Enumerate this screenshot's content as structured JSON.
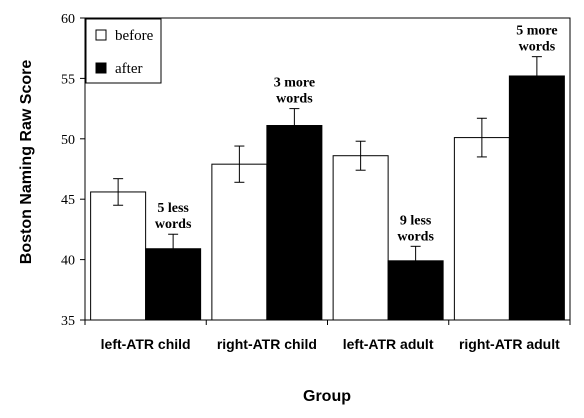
{
  "chart_data": {
    "type": "bar",
    "xlabel": "Group",
    "ylabel": "Boston Naming Raw Score",
    "ylim": [
      35,
      60
    ],
    "yticks": [
      35,
      40,
      45,
      50,
      55,
      60
    ],
    "categories": [
      "left-ATR child",
      "right-ATR child",
      "left-ATR adult",
      "right-ATR adult"
    ],
    "series": [
      {
        "name": "before",
        "color": "#ffffff",
        "values": [
          45.6,
          47.9,
          48.6,
          50.1
        ],
        "errors": [
          1.1,
          1.5,
          1.2,
          1.6
        ]
      },
      {
        "name": "after",
        "color": "#000000",
        "values": [
          40.9,
          51.1,
          39.9,
          55.2
        ],
        "errors": [
          1.2,
          1.4,
          1.2,
          1.6
        ]
      }
    ],
    "annotations": [
      {
        "category": "left-ATR child",
        "series": "after",
        "lines": [
          "5 less",
          "words"
        ]
      },
      {
        "category": "right-ATR child",
        "series": "after",
        "lines": [
          "3 more",
          "words"
        ]
      },
      {
        "category": "left-ATR adult",
        "series": "after",
        "lines": [
          "9 less",
          "words"
        ]
      },
      {
        "category": "right-ATR adult",
        "series": "after",
        "lines": [
          "5 more",
          "words"
        ]
      }
    ],
    "legend_position": "top-left",
    "grid": false
  }
}
